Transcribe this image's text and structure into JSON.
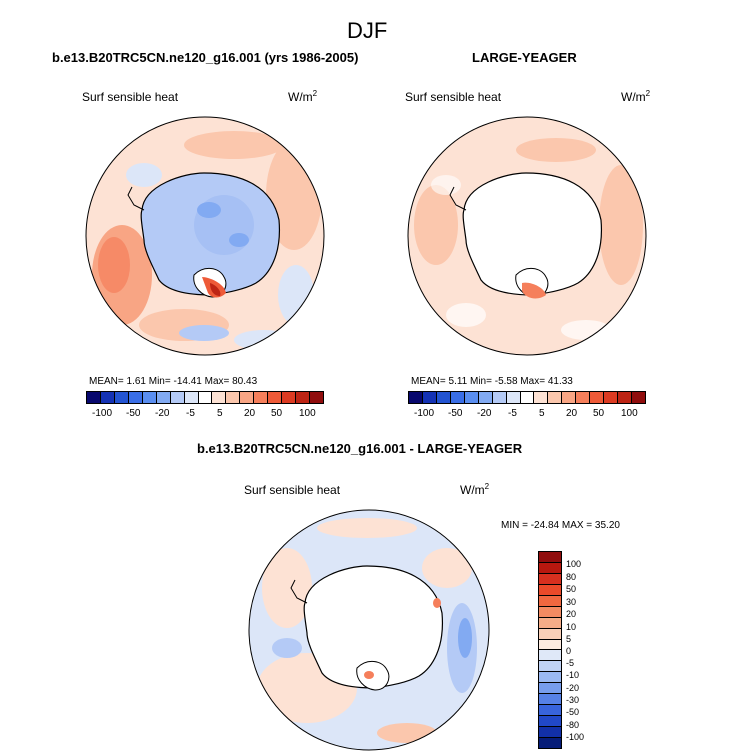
{
  "figure": {
    "title": "DJF",
    "panel1": {
      "header": "b.e13.B20TRC5CN.ne120_g16.001 (yrs 1986-2005)",
      "label": "Surf sensible heat",
      "units": "W/m",
      "units_exp": "2",
      "stats": "MEAN=   1.61  Min= -14.41  Max=  80.43"
    },
    "panel2": {
      "header": "LARGE-YEAGER",
      "label": "Surf sensible heat",
      "units": "W/m",
      "units_exp": "2",
      "stats": "MEAN=   5.11  Min=  -5.58  Max=  41.33"
    },
    "panel3": {
      "header": "b.e13.B20TRC5CN.ne120_g16.001 - LARGE-YEAGER",
      "label": "Surf sensible heat",
      "units": "W/m",
      "units_exp": "2",
      "stats": "MIN = -24.84  MAX =  35.20"
    }
  },
  "colorbar_h": {
    "colors": [
      "#08086e",
      "#1432b4",
      "#2354d2",
      "#3a6ee6",
      "#5a8ef0",
      "#82aaf2",
      "#b4caf6",
      "#dce6f8",
      "#ffffff",
      "#fde2d4",
      "#fbc7ad",
      "#f8a584",
      "#f57f5b",
      "#ee5a38",
      "#dc3b22",
      "#bd2414",
      "#900d0d"
    ],
    "tick_labels": [
      "-100",
      "-50",
      "-20",
      "-5",
      "5",
      "20",
      "50",
      "100"
    ]
  },
  "colorbar_v": {
    "colors": [
      "#900d0d",
      "#b8180f",
      "#d7301f",
      "#ea4a2a",
      "#f06840",
      "#f38b62",
      "#f6ad88",
      "#fad0b8",
      "#fdebe0",
      "#dfe8f8",
      "#c0d3f5",
      "#9bb9f2",
      "#779ded",
      "#5681e6",
      "#3864dc",
      "#2148c8",
      "#1230a8",
      "#061c78"
    ],
    "tick_labels": [
      "100",
      "80",
      "50",
      "30",
      "20",
      "10",
      "5",
      "0",
      "-5",
      "-10",
      "-20",
      "-30",
      "-50",
      "-80",
      "-100"
    ]
  }
}
